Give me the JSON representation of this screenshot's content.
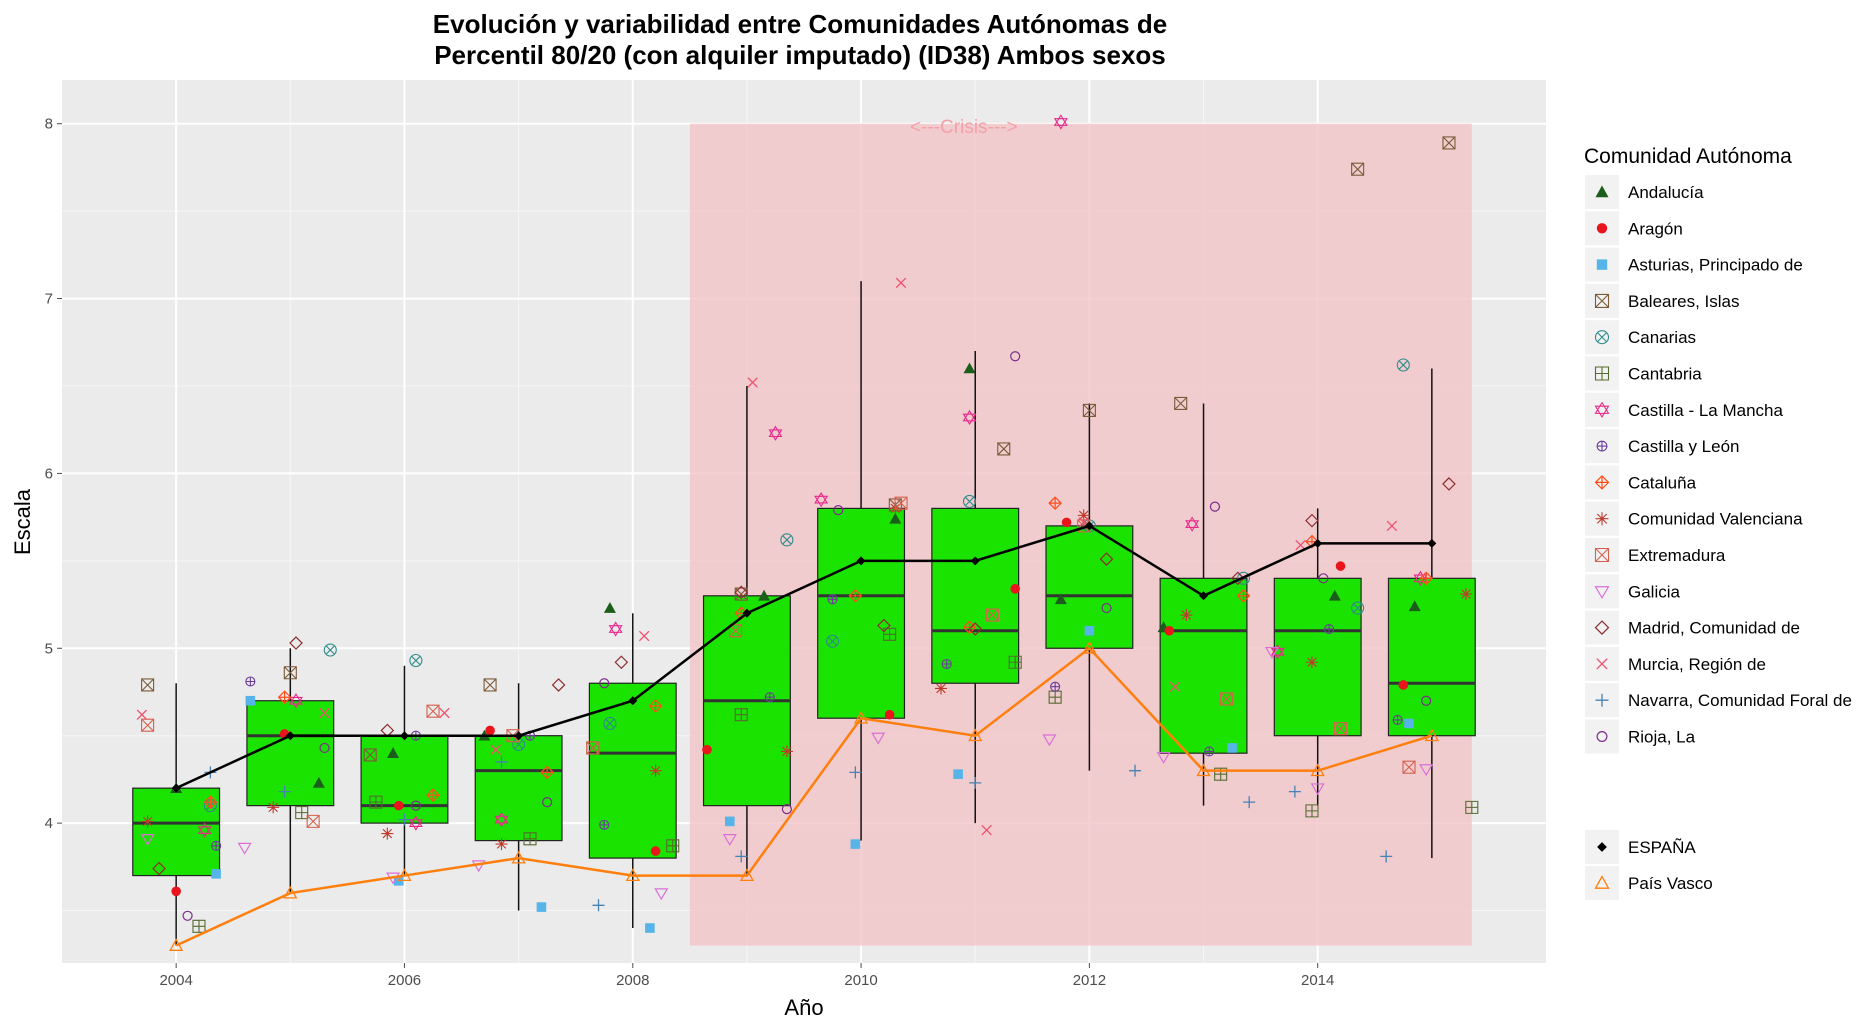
{
  "chart_data": {
    "type": "boxplot",
    "title": [
      "Evolución y variabilidad entre Comunidades Autónomas de",
      "Percentil 80/20 (con alquiler imputado) (ID38) Ambos sexos"
    ],
    "xlabel": "Año",
    "ylabel": "Escala",
    "xlim": [
      2003.0,
      2016.0
    ],
    "ylim": [
      3.2,
      8.25
    ],
    "x_ticks": [
      2004,
      2006,
      2008,
      2010,
      2012,
      2014
    ],
    "y_ticks": [
      4,
      5,
      6,
      7,
      8
    ],
    "grid": true,
    "legend_position": "right",
    "legend_title": "Comunidad Autónoma",
    "annotation": {
      "text": "<---Crisis--->",
      "x": 2010.9,
      "y": 7.98
    },
    "crisis_band": {
      "x_from": 2008.5,
      "x_to": 2015.35,
      "y_from": 3.3,
      "y_to": 8.0,
      "color": "#f3c4c8"
    },
    "box_color": "#1be300",
    "boxes": [
      {
        "year": 2004,
        "low": 3.3,
        "q1": 3.7,
        "median": 4.0,
        "q3": 4.2,
        "high": 4.8
      },
      {
        "year": 2005,
        "low": 3.6,
        "q1": 4.1,
        "median": 4.5,
        "q3": 4.7,
        "high": 5.0
      },
      {
        "year": 2006,
        "low": 3.7,
        "q1": 4.0,
        "median": 4.1,
        "q3": 4.5,
        "high": 4.9
      },
      {
        "year": 2007,
        "low": 3.5,
        "q1": 3.9,
        "median": 4.3,
        "q3": 4.5,
        "high": 4.8
      },
      {
        "year": 2008,
        "low": 3.4,
        "q1": 3.8,
        "median": 4.4,
        "q3": 4.8,
        "high": 5.2
      },
      {
        "year": 2009,
        "low": 3.7,
        "q1": 4.1,
        "median": 4.7,
        "q3": 5.3,
        "high": 6.5
      },
      {
        "year": 2010,
        "low": 3.9,
        "q1": 4.6,
        "median": 5.3,
        "q3": 5.8,
        "high": 7.1
      },
      {
        "year": 2011,
        "low": 4.0,
        "q1": 4.8,
        "median": 5.1,
        "q3": 5.8,
        "high": 6.7
      },
      {
        "year": 2012,
        "low": 4.3,
        "q1": 5.0,
        "median": 5.3,
        "q3": 5.7,
        "high": 6.4
      },
      {
        "year": 2013,
        "low": 4.1,
        "q1": 4.4,
        "median": 5.1,
        "q3": 5.4,
        "high": 6.4
      },
      {
        "year": 2014,
        "low": 4.1,
        "q1": 4.5,
        "median": 5.1,
        "q3": 5.4,
        "high": 5.8
      },
      {
        "year": 2015,
        "low": 3.8,
        "q1": 4.5,
        "median": 4.8,
        "q3": 5.4,
        "high": 6.6
      }
    ],
    "lines": [
      {
        "name": "ESPAÑA",
        "color": "#000000",
        "shape": "diamond",
        "x": [
          2004,
          2005,
          2006,
          2007,
          2008,
          2009,
          2010,
          2011,
          2012,
          2013,
          2014,
          2015
        ],
        "values": [
          4.2,
          4.5,
          4.5,
          4.5,
          4.7,
          5.2,
          5.5,
          5.5,
          5.7,
          5.3,
          5.6,
          5.6
        ]
      },
      {
        "name": "País Vasco",
        "color": "#ff7f0e",
        "shape": "triangle-open",
        "x": [
          2004,
          2005,
          2006,
          2007,
          2008,
          2009,
          2010,
          2011,
          2012,
          2013,
          2014,
          2015
        ],
        "values": [
          3.3,
          3.6,
          3.7,
          3.8,
          3.7,
          3.7,
          4.6,
          4.5,
          5.0,
          4.3,
          4.3,
          4.5
        ]
      }
    ],
    "regions": [
      {
        "name": "Andalucía",
        "color": "#1b5e1b",
        "shape": "triangle-filled",
        "points": [
          [
            2004.0,
            4.2
          ],
          [
            2005.25,
            4.23
          ],
          [
            2005.9,
            4.4
          ],
          [
            2006.7,
            4.5
          ],
          [
            2007.8,
            5.23
          ],
          [
            2009.15,
            5.3
          ],
          [
            2010.3,
            5.74
          ],
          [
            2010.95,
            6.6
          ],
          [
            2011.75,
            5.28
          ],
          [
            2012.65,
            5.12
          ],
          [
            2014.15,
            5.3
          ],
          [
            2014.85,
            5.24
          ]
        ]
      },
      {
        "name": "Aragón",
        "color": "#e8151c",
        "shape": "circle-filled",
        "points": [
          [
            2004.0,
            3.61
          ],
          [
            2004.95,
            4.51
          ],
          [
            2005.95,
            4.1
          ],
          [
            2006.75,
            4.53
          ],
          [
            2008.2,
            3.84
          ],
          [
            2008.65,
            4.42
          ],
          [
            2010.25,
            4.62
          ],
          [
            2011.35,
            5.34
          ],
          [
            2011.8,
            5.72
          ],
          [
            2012.7,
            5.1
          ],
          [
            2014.2,
            5.47
          ],
          [
            2014.75,
            4.79
          ]
        ]
      },
      {
        "name": "Asturias, Principado de",
        "color": "#56b4e9",
        "shape": "square-filled",
        "points": [
          [
            2004.35,
            3.71
          ],
          [
            2004.65,
            4.7
          ],
          [
            2005.95,
            3.67
          ],
          [
            2007.2,
            3.52
          ],
          [
            2008.15,
            3.4
          ],
          [
            2008.85,
            4.01
          ],
          [
            2009.95,
            3.88
          ],
          [
            2010.85,
            4.28
          ],
          [
            2012.0,
            5.1
          ],
          [
            2013.25,
            4.43
          ],
          [
            2014.8,
            4.57
          ]
        ]
      },
      {
        "name": "Baleares, Islas",
        "color": "#7b5b3a",
        "shape": "square-x",
        "points": [
          [
            2003.75,
            4.79
          ],
          [
            2005.0,
            4.86
          ],
          [
            2005.7,
            4.39
          ],
          [
            2006.75,
            4.79
          ],
          [
            2007.65,
            4.43
          ],
          [
            2008.95,
            5.31
          ],
          [
            2010.3,
            5.82
          ],
          [
            2011.25,
            6.14
          ],
          [
            2012.0,
            6.36
          ],
          [
            2012.8,
            6.4
          ],
          [
            2014.35,
            7.74
          ],
          [
            2015.15,
            7.89
          ]
        ]
      },
      {
        "name": "Canarias",
        "color": "#2e8b8b",
        "shape": "circle-x",
        "points": [
          [
            2004.3,
            4.1
          ],
          [
            2005.35,
            4.99
          ],
          [
            2006.1,
            4.93
          ],
          [
            2007.0,
            4.45
          ],
          [
            2007.8,
            4.57
          ],
          [
            2009.35,
            5.62
          ],
          [
            2009.75,
            5.04
          ],
          [
            2010.95,
            5.84
          ],
          [
            2012.0,
            5.7
          ],
          [
            2013.35,
            5.4
          ],
          [
            2014.35,
            5.23
          ],
          [
            2014.75,
            6.62
          ]
        ]
      },
      {
        "name": "Cantabria",
        "color": "#556b2f",
        "shape": "square-plus",
        "points": [
          [
            2004.2,
            3.41
          ],
          [
            2005.1,
            4.06
          ],
          [
            2005.75,
            4.12
          ],
          [
            2007.1,
            3.91
          ],
          [
            2008.35,
            3.87
          ],
          [
            2008.95,
            4.62
          ],
          [
            2010.25,
            5.08
          ],
          [
            2011.35,
            4.92
          ],
          [
            2011.7,
            4.72
          ],
          [
            2013.15,
            4.28
          ],
          [
            2013.95,
            4.07
          ],
          [
            2015.35,
            4.09
          ]
        ]
      },
      {
        "name": "Castilla - La Mancha",
        "color": "#e7298a",
        "shape": "star6",
        "points": [
          [
            2004.25,
            3.96
          ],
          [
            2005.05,
            4.7
          ],
          [
            2006.1,
            4.0
          ],
          [
            2006.85,
            4.02
          ],
          [
            2007.85,
            5.11
          ],
          [
            2009.25,
            6.23
          ],
          [
            2009.65,
            5.85
          ],
          [
            2010.95,
            6.32
          ],
          [
            2011.75,
            8.01
          ],
          [
            2012.9,
            5.71
          ],
          [
            2013.65,
            4.98
          ],
          [
            2014.9,
            5.4
          ]
        ]
      },
      {
        "name": "Castilla y León",
        "color": "#6a3d9a",
        "shape": "circle-plus",
        "points": [
          [
            2004.35,
            3.87
          ],
          [
            2004.65,
            4.81
          ],
          [
            2006.1,
            4.5
          ],
          [
            2007.1,
            4.5
          ],
          [
            2007.75,
            3.99
          ],
          [
            2009.2,
            4.72
          ],
          [
            2009.75,
            5.28
          ],
          [
            2010.75,
            4.91
          ],
          [
            2011.7,
            4.78
          ],
          [
            2013.05,
            4.41
          ],
          [
            2014.1,
            5.11
          ],
          [
            2014.7,
            4.59
          ]
        ]
      },
      {
        "name": "Cataluña",
        "color": "#ff4e1c",
        "shape": "diamond-plus",
        "points": [
          [
            2004.3,
            4.12
          ],
          [
            2004.95,
            4.72
          ],
          [
            2006.25,
            4.16
          ],
          [
            2007.25,
            4.29
          ],
          [
            2008.2,
            4.67
          ],
          [
            2008.95,
            5.2
          ],
          [
            2009.95,
            5.3
          ],
          [
            2010.95,
            5.12
          ],
          [
            2011.7,
            5.83
          ],
          [
            2013.35,
            5.3
          ],
          [
            2013.95,
            5.61
          ],
          [
            2014.95,
            5.4
          ]
        ]
      },
      {
        "name": "Comunidad Valenciana",
        "color": "#c0392b",
        "shape": "asterisk",
        "points": [
          [
            2003.75,
            4.01
          ],
          [
            2004.85,
            4.09
          ],
          [
            2005.85,
            3.94
          ],
          [
            2006.85,
            3.88
          ],
          [
            2008.2,
            4.3
          ],
          [
            2009.35,
            4.41
          ],
          [
            2010.3,
            5.8
          ],
          [
            2010.7,
            4.77
          ],
          [
            2011.95,
            5.76
          ],
          [
            2012.85,
            5.19
          ],
          [
            2013.95,
            4.92
          ],
          [
            2015.3,
            5.31
          ]
        ]
      },
      {
        "name": "Extremadura",
        "color": "#d6604d",
        "shape": "square-x",
        "points": [
          [
            2003.75,
            4.56
          ],
          [
            2005.2,
            4.01
          ],
          [
            2006.25,
            4.64
          ],
          [
            2006.95,
            4.5
          ],
          [
            2007.65,
            4.43
          ],
          [
            2008.9,
            5.1
          ],
          [
            2010.35,
            5.83
          ],
          [
            2011.15,
            5.19
          ],
          [
            2011.95,
            5.7
          ],
          [
            2013.2,
            4.71
          ],
          [
            2014.2,
            4.54
          ],
          [
            2014.8,
            4.32
          ]
        ]
      },
      {
        "name": "Galicia",
        "color": "#da70d6",
        "shape": "triangle-down",
        "points": [
          [
            2003.75,
            3.91
          ],
          [
            2004.6,
            3.86
          ],
          [
            2005.9,
            3.69
          ],
          [
            2006.65,
            3.76
          ],
          [
            2008.25,
            3.6
          ],
          [
            2008.85,
            3.91
          ],
          [
            2010.15,
            4.49
          ],
          [
            2011.65,
            4.48
          ],
          [
            2012.65,
            4.38
          ],
          [
            2013.6,
            4.98
          ],
          [
            2014.0,
            4.2
          ],
          [
            2014.95,
            4.31
          ]
        ]
      },
      {
        "name": "Madrid, Comunidad de",
        "color": "#8b2e2e",
        "shape": "diamond-open",
        "points": [
          [
            2003.85,
            3.74
          ],
          [
            2005.05,
            5.03
          ],
          [
            2005.85,
            4.53
          ],
          [
            2007.35,
            4.79
          ],
          [
            2007.9,
            4.92
          ],
          [
            2008.95,
            5.32
          ],
          [
            2010.2,
            5.13
          ],
          [
            2011.0,
            5.11
          ],
          [
            2012.15,
            5.51
          ],
          [
            2013.3,
            5.4
          ],
          [
            2013.95,
            5.73
          ],
          [
            2015.15,
            5.94
          ]
        ]
      },
      {
        "name": "Murcia, Región de",
        "color": "#f0506e",
        "shape": "cross-x",
        "points": [
          [
            2003.7,
            4.62
          ],
          [
            2005.3,
            4.63
          ],
          [
            2006.35,
            4.63
          ],
          [
            2006.8,
            4.42
          ],
          [
            2008.1,
            5.07
          ],
          [
            2009.05,
            6.52
          ],
          [
            2010.35,
            7.09
          ],
          [
            2011.1,
            3.96
          ],
          [
            2011.95,
            5.72
          ],
          [
            2012.75,
            4.78
          ],
          [
            2013.85,
            5.59
          ],
          [
            2014.65,
            5.7
          ]
        ]
      },
      {
        "name": "Navarra, Comunidad Foral de",
        "color": "#4682b4",
        "shape": "plus",
        "points": [
          [
            2004.3,
            4.29
          ],
          [
            2004.95,
            4.18
          ],
          [
            2006.0,
            4.02
          ],
          [
            2006.85,
            4.35
          ],
          [
            2007.7,
            3.53
          ],
          [
            2008.95,
            3.81
          ],
          [
            2009.95,
            4.29
          ],
          [
            2011.0,
            4.23
          ],
          [
            2012.4,
            4.3
          ],
          [
            2013.4,
            4.12
          ],
          [
            2013.8,
            4.18
          ],
          [
            2014.6,
            3.81
          ]
        ]
      },
      {
        "name": "Rioja, La",
        "color": "#7b2d8b",
        "shape": "circle-open",
        "points": [
          [
            2004.1,
            3.47
          ],
          [
            2005.3,
            4.43
          ],
          [
            2006.1,
            4.1
          ],
          [
            2007.25,
            4.12
          ],
          [
            2007.75,
            4.8
          ],
          [
            2009.35,
            4.08
          ],
          [
            2009.8,
            5.79
          ],
          [
            2011.35,
            6.67
          ],
          [
            2012.15,
            5.23
          ],
          [
            2013.1,
            5.81
          ],
          [
            2014.05,
            5.4
          ],
          [
            2014.95,
            4.7
          ]
        ]
      }
    ]
  }
}
